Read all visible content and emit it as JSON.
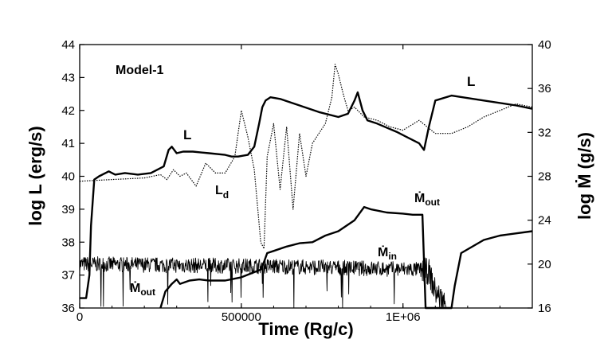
{
  "chart_data": {
    "type": "line",
    "title": "",
    "annotation_title": "Model-1",
    "xlabel": "Time (Rg/c)",
    "ylabel_left": "log L (erg/s)",
    "ylabel_right": "log Ṁ (g/s)",
    "xlim": [
      0,
      1400000
    ],
    "ylim_left": [
      36,
      44
    ],
    "ylim_right": [
      16,
      40
    ],
    "x_ticks": [
      0,
      500000,
      1000000
    ],
    "x_tick_labels": [
      "0",
      "500000",
      "1E+06"
    ],
    "y_left_ticks": [
      "36",
      "37",
      "38",
      "39",
      "40",
      "41",
      "42",
      "43",
      "44"
    ],
    "y_right_ticks": [
      "16",
      "20",
      "24",
      "28",
      "32",
      "36",
      "40"
    ],
    "grid": false,
    "series": [
      {
        "name": "L",
        "axis": "left",
        "style": "solid-thick",
        "x": [
          0,
          20000,
          30000,
          35000,
          45000,
          60000,
          90000,
          110000,
          140000,
          180000,
          220000,
          260000,
          275000,
          285000,
          300000,
          320000,
          350000,
          400000,
          450000,
          470000,
          490000,
          520000,
          540000,
          555000,
          565000,
          575000,
          590000,
          620000,
          680000,
          740000,
          800000,
          830000,
          850000,
          860000,
          875000,
          890000,
          920000,
          980000,
          1050000,
          1065000,
          1080000,
          1100000,
          1150000,
          1250000,
          1350000,
          1400000
        ],
        "y": [
          36.3,
          36.3,
          37.0,
          38.5,
          39.9,
          40.0,
          40.15,
          40.05,
          40.1,
          40.05,
          40.1,
          40.3,
          40.8,
          40.9,
          40.7,
          40.75,
          40.75,
          40.7,
          40.65,
          40.6,
          40.6,
          40.65,
          40.9,
          41.6,
          42.1,
          42.3,
          42.4,
          42.35,
          42.15,
          41.95,
          41.8,
          41.9,
          42.3,
          42.55,
          42.0,
          41.7,
          41.6,
          41.35,
          41.0,
          40.8,
          41.5,
          42.3,
          42.45,
          42.3,
          42.15,
          42.05
        ]
      },
      {
        "name": "Ld",
        "axis": "left",
        "style": "dotted",
        "x": [
          0,
          100000,
          200000,
          250000,
          270000,
          290000,
          310000,
          330000,
          360000,
          390000,
          420000,
          450000,
          480000,
          500000,
          520000,
          540000,
          560000,
          570000,
          580000,
          600000,
          620000,
          640000,
          660000,
          680000,
          700000,
          720000,
          760000,
          780000,
          790000,
          800000,
          815000,
          830000,
          850000,
          880000,
          920000,
          960000,
          1000000,
          1050000,
          1100000,
          1150000,
          1200000,
          1250000,
          1300000,
          1350000,
          1400000
        ],
        "y": [
          39.85,
          39.9,
          39.95,
          40.05,
          39.9,
          40.2,
          40.0,
          40.1,
          39.7,
          40.4,
          40.1,
          40.1,
          40.6,
          42.0,
          41.2,
          40.2,
          38.0,
          37.8,
          40.6,
          41.6,
          39.6,
          41.5,
          39.0,
          41.3,
          40.0,
          41.0,
          41.6,
          42.4,
          43.4,
          43.1,
          42.5,
          42.0,
          42.1,
          41.8,
          41.7,
          41.5,
          41.4,
          41.7,
          41.3,
          41.3,
          41.5,
          41.8,
          42.0,
          42.2,
          42.1
        ]
      },
      {
        "name": "Ṁin",
        "axis": "right",
        "style": "noisy-thin",
        "x": [
          0,
          600000,
          1050000,
          1080000,
          1100000,
          1140000
        ],
        "y": [
          20.0,
          19.8,
          19.5,
          19.3,
          17.5,
          16.0
        ]
      },
      {
        "name": "Ṁout",
        "axis": "right",
        "style": "solid-thick",
        "x": [
          250000,
          265000,
          285000,
          300000,
          310000,
          340000,
          370000,
          400000,
          450000,
          500000,
          560000,
          570000,
          580000,
          600000,
          640000,
          680000,
          720000,
          760000,
          800000,
          850000,
          870000,
          880000,
          900000,
          950000,
          1000000,
          1030000,
          1050000,
          1060000,
          1070000,
          1150000,
          1160000,
          1180000,
          1250000,
          1300000,
          1400000
        ],
        "y": [
          16.0,
          17.5,
          18.2,
          18.6,
          18.2,
          18.5,
          18.6,
          18.5,
          18.5,
          18.8,
          19.5,
          20.2,
          21.0,
          21.2,
          21.6,
          21.9,
          22.0,
          22.6,
          23.0,
          24.0,
          24.8,
          25.2,
          25.0,
          24.7,
          24.6,
          24.5,
          24.5,
          24.5,
          16.0,
          16.0,
          18.0,
          21.0,
          22.2,
          22.6,
          23.0
        ]
      }
    ],
    "labels": {
      "model": "Model-1",
      "L_main": "L",
      "L_right": "L",
      "Ld_base": "L",
      "Ld_sub": "d",
      "Mdot_out_top": "Ṁ",
      "Mdot_out_top_sub": "out",
      "Mdot_in": "Ṁ",
      "Mdot_in_sub": "in",
      "Mdot_out_bottom": "Ṁ",
      "Mdot_out_bottom_sub": "out"
    }
  }
}
